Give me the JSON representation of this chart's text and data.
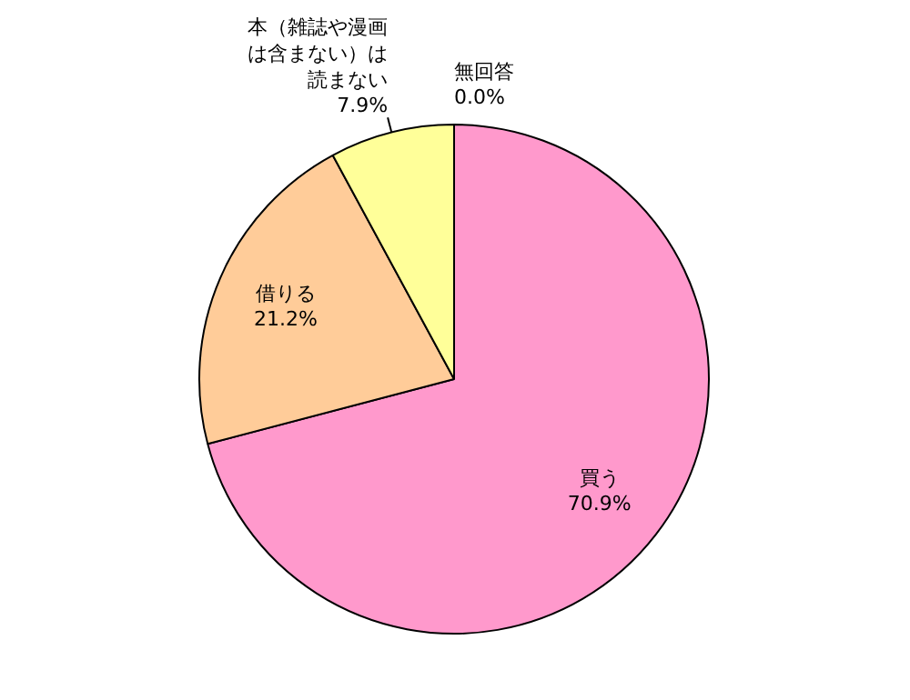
{
  "chart_data": {
    "type": "pie",
    "categories": [
      "買う",
      "借りる",
      "本（雑誌や漫画は含まない）は読まない",
      "無回答"
    ],
    "values": [
      70.9,
      21.2,
      7.9,
      0.0
    ],
    "value_labels": [
      "70.9%",
      "21.2%",
      "7.9%",
      "0.0%"
    ],
    "colors": [
      "#ff99cc",
      "#ffcc99",
      "#ffff99",
      "#ccffcc"
    ]
  }
}
